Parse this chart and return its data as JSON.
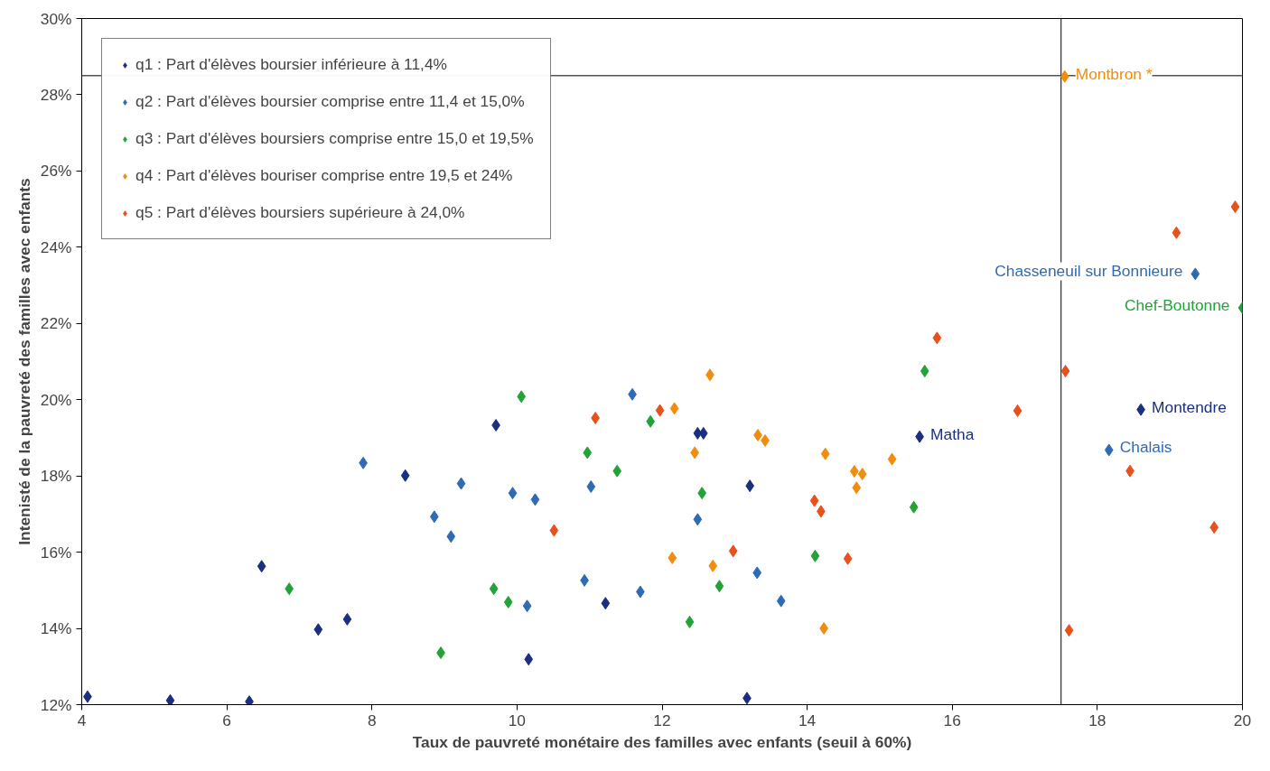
{
  "chart_data": {
    "type": "scatter",
    "xlabel": "Taux de pauvreté monétaire des familles avec enfants (seuil à 60%)",
    "ylabel": "Intenisté de la pauvreté des familles avec enfants",
    "xlim": [
      4,
      20
    ],
    "xticks": [
      4,
      6,
      8,
      10,
      12,
      14,
      16,
      18,
      20
    ],
    "ylim": [
      12,
      30
    ],
    "yticks": [
      {
        "value": 12,
        "label": "12%"
      },
      {
        "value": 14,
        "label": "14%"
      },
      {
        "value": 16,
        "label": "16%"
      },
      {
        "value": 18,
        "label": "18%"
      },
      {
        "value": 20,
        "label": "20%"
      },
      {
        "value": 22,
        "label": "22%"
      },
      {
        "value": 24,
        "label": "24%"
      },
      {
        "value": 26,
        "label": "26%"
      },
      {
        "value": 28,
        "label": "28%"
      },
      {
        "value": 30,
        "label": "30%"
      }
    ],
    "grid": false,
    "legend": "top left",
    "marker": "diamond",
    "ref_lines": [
      {
        "axis": "x",
        "value": 17.5,
        "color": "#000000"
      },
      {
        "axis": "y",
        "value": 28.5,
        "color": "#000000"
      }
    ],
    "series": [
      {
        "name": "q1 : Part d'élèves boursier inférieure à 11,4%",
        "color": "#1b2f80",
        "x": [
          4.08,
          5.22,
          6.31,
          6.48,
          7.26,
          7.66,
          8.46,
          9.71,
          12.49,
          12.57,
          13.21,
          11.22,
          10.16,
          13.17,
          15.55,
          18.6
        ],
        "values": [
          12.21,
          12.11,
          12.08,
          15.63,
          13.97,
          14.24,
          18.01,
          19.33,
          19.12,
          19.12,
          17.74,
          14.66,
          13.19,
          12.17,
          19.03,
          19.74
        ],
        "value_labels": [
          null,
          null,
          null,
          null,
          null,
          null,
          null,
          null,
          null,
          null,
          null,
          null,
          null,
          null,
          "Matha",
          "Montendre"
        ]
      },
      {
        "name": "q2 : Part d'élèves boursier comprise entre 11,4 et 15,0%",
        "color": "#2f6bb5",
        "x": [
          7.88,
          8.86,
          9.09,
          9.23,
          11.59,
          9.94,
          10.25,
          11.02,
          12.49,
          13.31,
          10.93,
          10.14,
          11.7,
          13.64,
          19.35,
          18.16
        ],
        "values": [
          18.34,
          16.93,
          16.41,
          17.8,
          20.14,
          17.55,
          17.38,
          17.72,
          16.86,
          15.46,
          15.26,
          14.59,
          14.96,
          14.72,
          23.3,
          18.68
        ],
        "value_labels": [
          null,
          null,
          null,
          null,
          null,
          null,
          null,
          null,
          null,
          null,
          null,
          null,
          null,
          null,
          "Chasseneuil sur Bonnieure",
          "Chalais"
        ]
      },
      {
        "name": "q3 : Part d'élèves boursiers comprise entre 15,0 et 19,5%",
        "color": "#22a338",
        "x": [
          6.86,
          8.95,
          10.06,
          11.84,
          10.97,
          11.38,
          12.55,
          14.11,
          12.79,
          9.68,
          9.88,
          12.38,
          15.62,
          15.47,
          20.0
        ],
        "values": [
          15.04,
          13.36,
          20.08,
          19.43,
          18.61,
          18.13,
          17.55,
          15.9,
          15.11,
          15.04,
          14.69,
          14.17,
          20.75,
          17.18,
          22.41
        ],
        "value_labels": [
          null,
          null,
          null,
          null,
          null,
          null,
          null,
          null,
          null,
          null,
          null,
          null,
          null,
          null,
          "Chef-Boutonne"
        ]
      },
      {
        "name": "q4 : Part d'élèves bouriser comprise entre 19,5 et 24%",
        "color": "#f28c0f",
        "x": [
          12.17,
          12.66,
          13.32,
          13.42,
          12.45,
          14.25,
          15.17,
          14.65,
          14.76,
          14.68,
          12.14,
          12.7,
          14.23,
          17.55
        ],
        "values": [
          19.77,
          20.65,
          19.07,
          18.93,
          18.61,
          18.58,
          18.44,
          18.12,
          18.05,
          17.69,
          15.85,
          15.64,
          14.0,
          28.48
        ],
        "value_labels": [
          null,
          null,
          null,
          null,
          null,
          null,
          null,
          null,
          null,
          null,
          null,
          null,
          null,
          "Montbron *"
        ]
      },
      {
        "name": "q5 : Part d'élèves boursiers supérieure à 24,0%",
        "color": "#e8501c",
        "x": [
          11.08,
          11.97,
          14.1,
          14.19,
          10.51,
          12.98,
          14.56,
          19.9,
          19.09,
          15.79,
          17.56,
          16.9,
          18.45,
          19.61,
          17.61
        ],
        "values": [
          19.52,
          19.72,
          17.35,
          17.07,
          16.57,
          16.03,
          15.83,
          25.06,
          24.38,
          21.62,
          20.75,
          19.71,
          18.13,
          16.65,
          13.95
        ]
      }
    ]
  }
}
